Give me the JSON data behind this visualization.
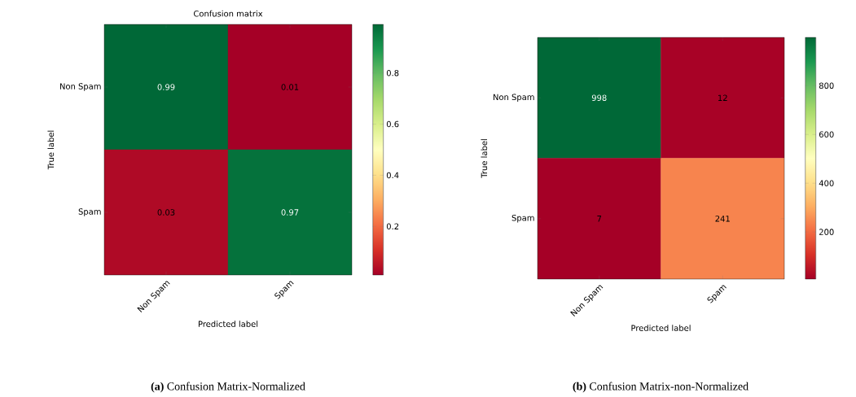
{
  "chart_data": [
    {
      "type": "heatmap",
      "title": "Confusion matrix",
      "xlabel": "Predicted label",
      "ylabel": "True label",
      "categories": [
        "Non Spam",
        "Spam"
      ],
      "y_categories": [
        "Non Spam",
        "Spam"
      ],
      "cells": [
        [
          0.99,
          0.01
        ],
        [
          0.03,
          0.97
        ]
      ],
      "clim": [
        0.01,
        0.99
      ],
      "cticks": [
        0.2,
        0.4,
        0.6,
        0.8
      ],
      "data_labels": true,
      "annotations": [
        "**(a)** Confusion Matrix-Normalized"
      ]
    },
    {
      "type": "heatmap",
      "xlabel": "Predicted label",
      "ylabel": "True label",
      "categories": [
        "Non Spam",
        "Spam"
      ],
      "y_categories": [
        "Non Spam",
        "Spam"
      ],
      "cells": [
        [
          998,
          12
        ],
        [
          7,
          241
        ]
      ],
      "clim": [
        7,
        998
      ],
      "cticks": [
        200,
        400,
        600,
        800
      ],
      "data_labels": true,
      "annotations": [
        "**(b)** Confusion Matrix-non-Normalized"
      ]
    }
  ]
}
